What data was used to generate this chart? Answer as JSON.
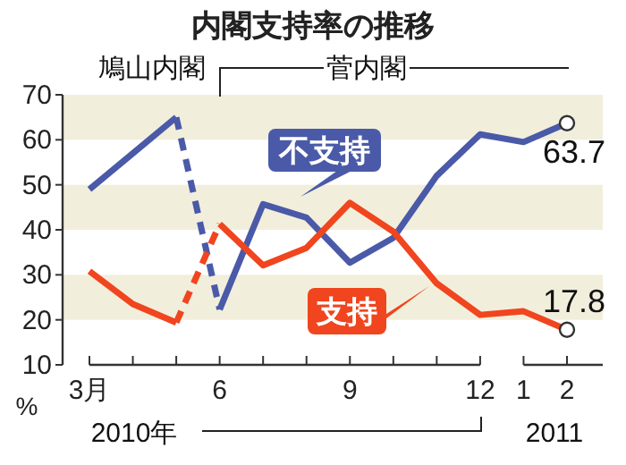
{
  "chart_data": {
    "type": "line",
    "title": "内閣支持率の推移",
    "ylabel": "%",
    "categories": [
      "3月",
      null,
      null,
      "6",
      null,
      null,
      "9",
      null,
      null,
      "12",
      "1",
      "2"
    ],
    "series": [
      {
        "name": "不支持",
        "color": "#4a5aa8",
        "values": [
          49,
          57,
          65,
          null,
          null,
          null,
          null,
          null,
          null,
          null,
          null,
          null
        ]
      },
      {
        "color": "#4a5aa8",
        "line_style": "dashed",
        "values": [
          null,
          null,
          65,
          22.3,
          null,
          null,
          null,
          null,
          null,
          null,
          null,
          null
        ]
      },
      {
        "color": "#4a5aa8",
        "values": [
          null,
          null,
          null,
          22.3,
          45.7,
          42.7,
          32.7,
          38.2,
          52,
          61.2,
          59.5,
          63.7
        ]
      },
      {
        "name": "支持",
        "color": "#f0451e",
        "values": [
          30.8,
          23.5,
          19.4,
          null,
          null,
          null,
          null,
          null,
          null,
          null,
          null,
          null
        ]
      },
      {
        "color": "#f0451e",
        "line_style": "dashed",
        "values": [
          null,
          null,
          19.4,
          41.3,
          null,
          null,
          null,
          null,
          null,
          null,
          null,
          null
        ]
      },
      {
        "color": "#f0451e",
        "values": [
          null,
          null,
          null,
          41.3,
          32.1,
          36,
          46,
          39.6,
          28.1,
          21.1,
          21.9,
          17.8
        ]
      }
    ],
    "ylim": [
      10,
      70
    ],
    "yticks": [
      10,
      20,
      30,
      40,
      50,
      60,
      70
    ],
    "bands": [
      {
        "axis": "y",
        "from": 20,
        "to": 30,
        "color": "#f2eedc"
      },
      {
        "axis": "y",
        "from": 40,
        "to": 50,
        "color": "#f2eedc"
      },
      {
        "axis": "y",
        "from": 60,
        "to": 70,
        "color": "#f2eedc"
      }
    ],
    "annotations": [
      "鳩山内閣",
      "菅内閣",
      "2010年",
      "2011",
      {
        "text": "63.7",
        "x": "2",
        "y": 63.7
      },
      {
        "text": "17.8",
        "x": "2",
        "y": 17.8
      }
    ]
  }
}
